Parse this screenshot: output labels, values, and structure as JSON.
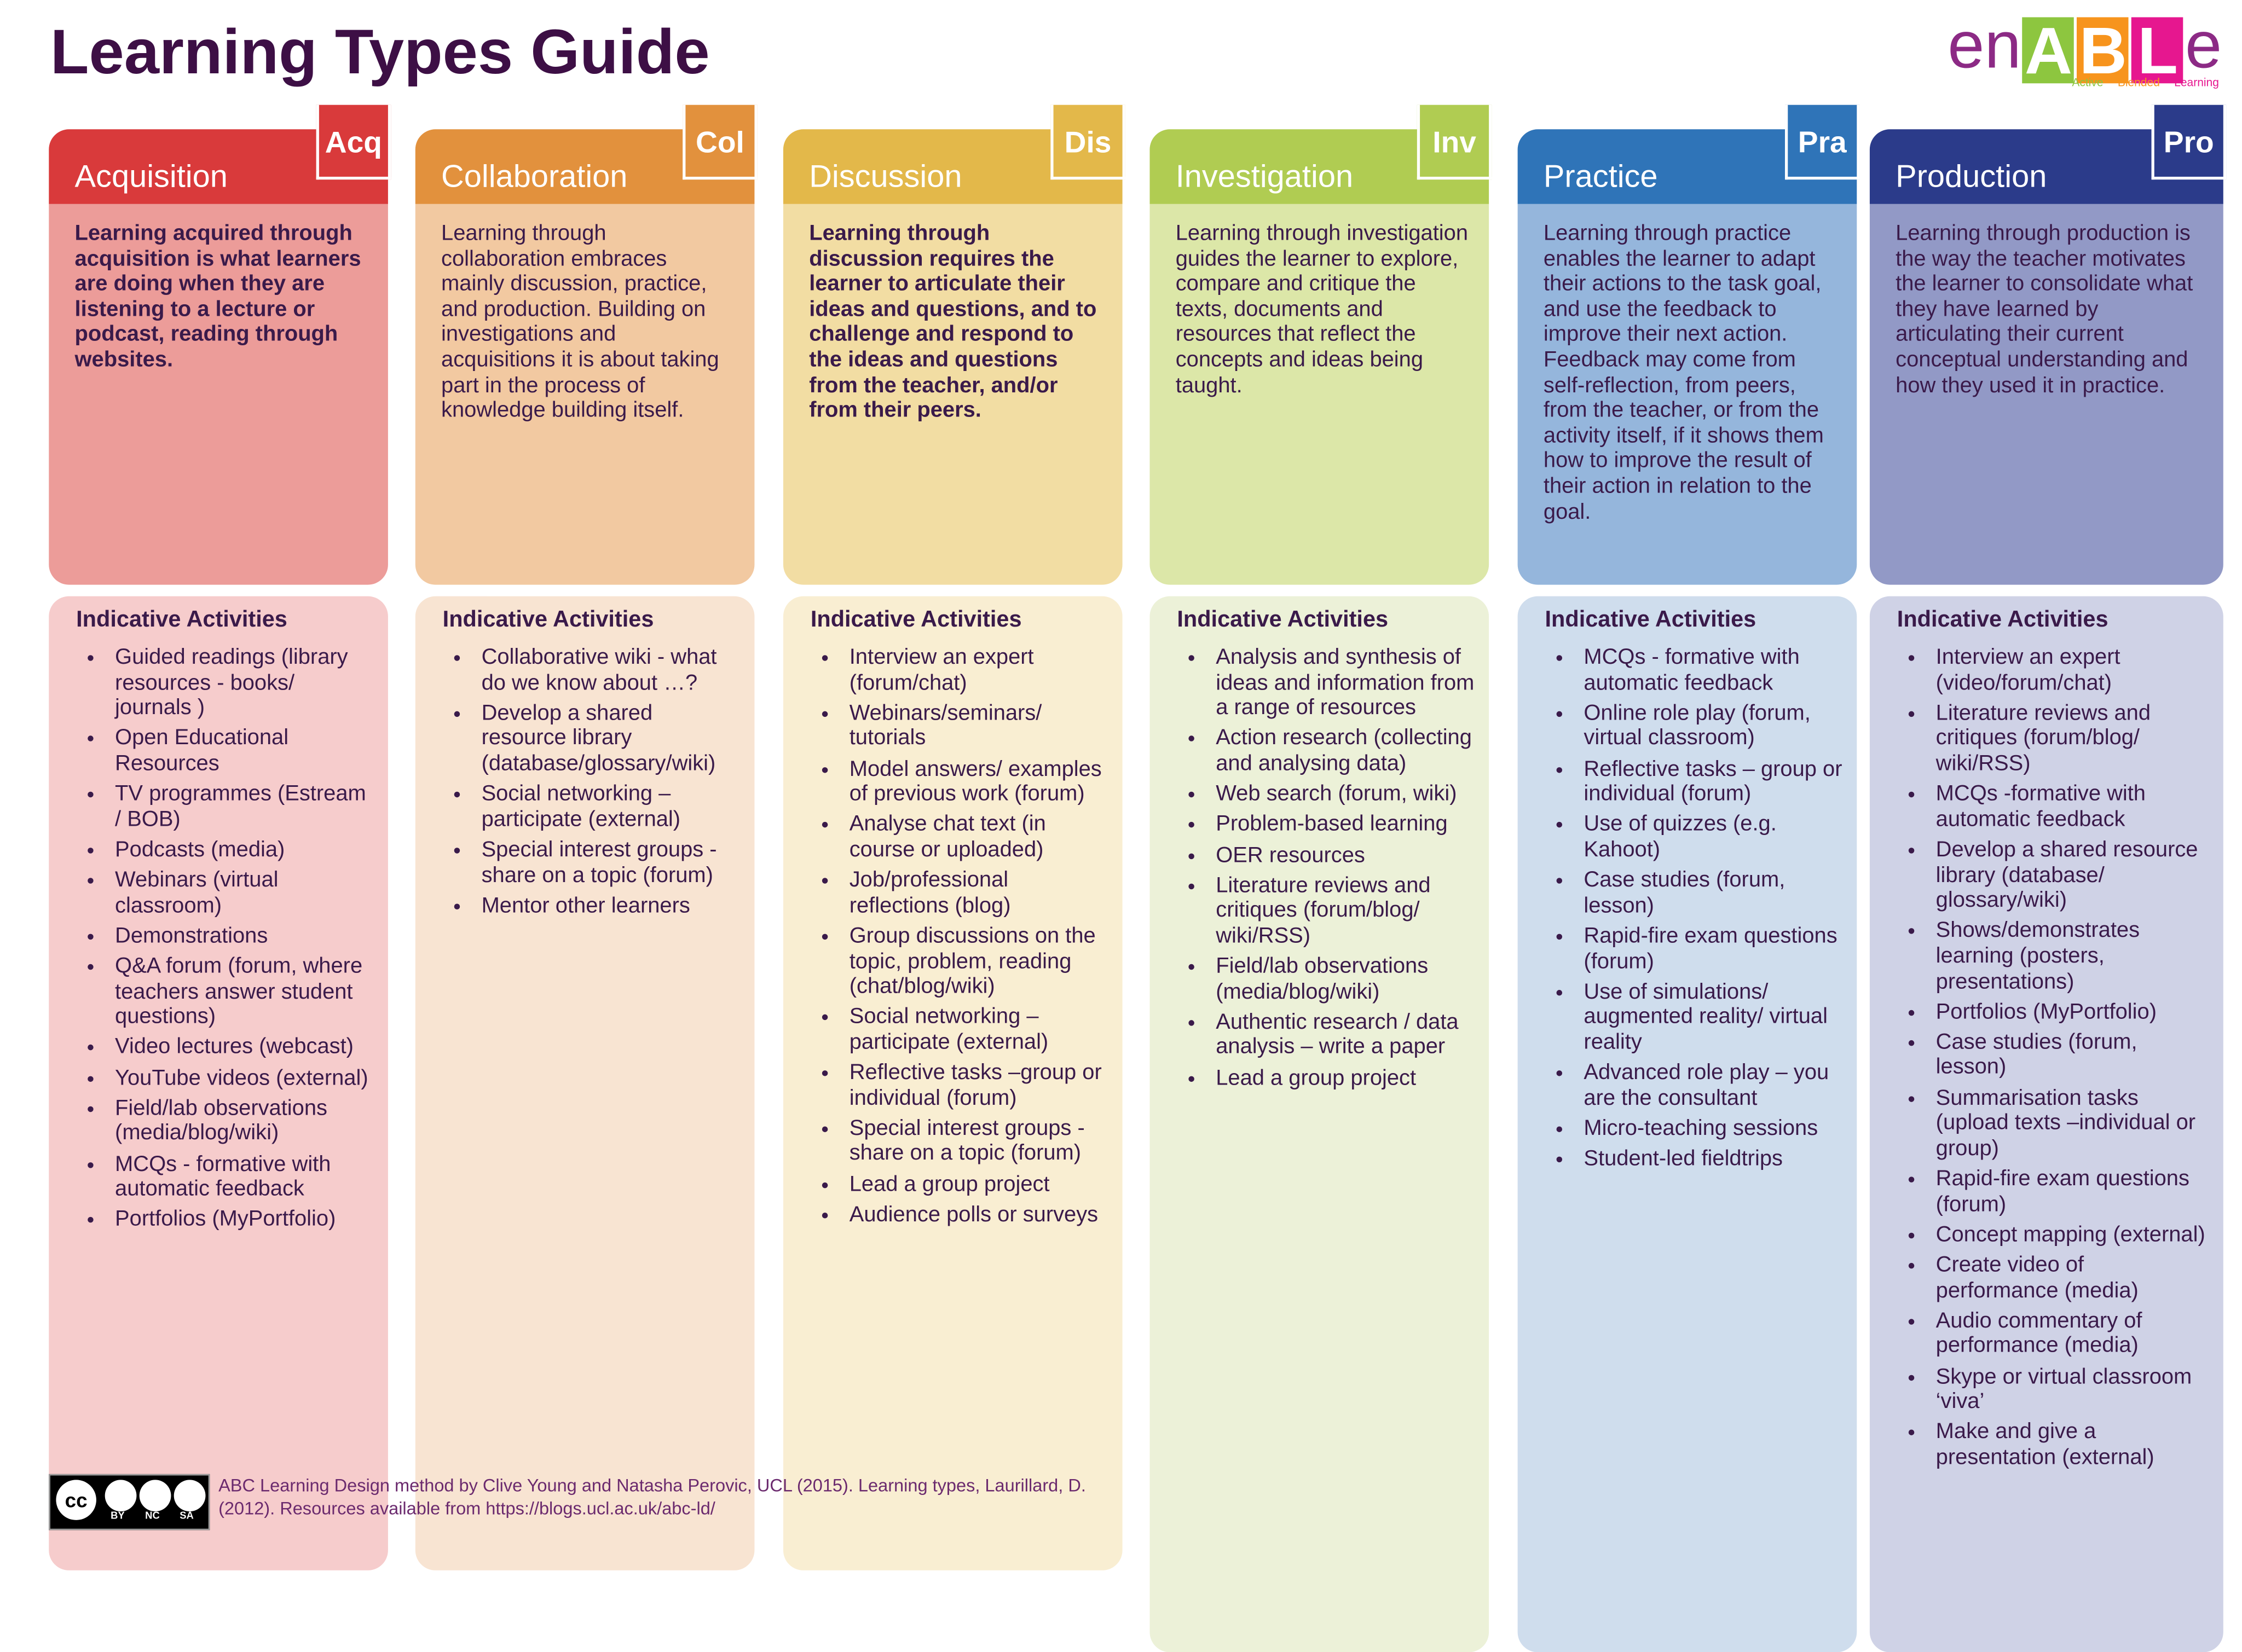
{
  "header": {
    "title": "Learning Types Guide",
    "logo": {
      "prefix": "en",
      "letters": [
        "A",
        "B",
        "L"
      ],
      "suffix": "e",
      "tagline": [
        "Active",
        "Blended",
        "Learning"
      ]
    }
  },
  "columns": [
    {
      "name": "Acquisition",
      "abbr": "Acq",
      "description": "Learning acquired through acquisition is what learners are doing when they are listening to a lecture or podcast, reading through websites.",
      "heading": "Indicative Activities",
      "activities": [
        "Guided readings (library resources - books/ journals )",
        "Open Educational Resources",
        "TV programmes (Estream / BOB)",
        "Podcasts (media)",
        "Webinars (virtual classroom)",
        "Demonstrations",
        "Q&A forum (forum, where teachers answer student questions)",
        "Video lectures (webcast)",
        "YouTube videos (external)",
        "Field/lab observations (media/blog/wiki)",
        "MCQs - formative with automatic feedback",
        "Portfolios (MyPortfolio)"
      ]
    },
    {
      "name": "Collaboration",
      "abbr": "Col",
      "description": "Learning through collaboration embraces mainly discussion, practice, and production. Building on investigations and acquisitions it is about taking part in the process of knowledge building itself.",
      "heading": "Indicative Activities",
      "activities": [
        "Collaborative wiki - what do we know about …?",
        "Develop a shared resource library (database/glossary/wiki)",
        "Social networking – participate (external)",
        "Special interest groups - share on a topic (forum)",
        "Mentor other learners"
      ]
    },
    {
      "name": "Discussion",
      "abbr": "Dis",
      "description": "Learning through discussion requires the learner to articulate their ideas and questions, and to challenge and respond to the ideas and questions from the teacher, and/or from their peers.",
      "heading": "Indicative Activities",
      "activities": [
        "Interview an expert (forum/chat)",
        "Webinars/seminars/ tutorials",
        "Model answers/ examples of previous work (forum)",
        "Analyse chat text (in course or uploaded)",
        "Job/professional reflections (blog)",
        "Group discussions on the topic, problem, reading (chat/blog/wiki)",
        "Social networking – participate (external)",
        "Reflective tasks –group or individual (forum)",
        "Special interest groups - share on a topic (forum)",
        "Lead a group project",
        "Audience polls or surveys"
      ]
    },
    {
      "name": "Investigation",
      "abbr": "Inv",
      "description": "Learning through investigation guides the learner to explore, compare and critique the texts, documents and resources that reflect the concepts and ideas being taught.",
      "heading": "Indicative Activities",
      "activities": [
        "Analysis and synthesis of ideas and information from a range of resources",
        "Action research (collecting and analysing data)",
        "Web search (forum, wiki)",
        "Problem-based learning",
        "OER resources",
        "Literature reviews and critiques (forum/blog/ wiki/RSS)",
        "Field/lab observations (media/blog/wiki)",
        "Authentic research / data analysis – write a paper",
        "Lead a group project"
      ]
    },
    {
      "name": "Practice",
      "abbr": "Pra",
      "description": "Learning through practice enables the learner to adapt their actions to the task goal, and use the feedback to improve their next action. Feedback may come from self-reflection, from peers, from the teacher, or from the activity itself, if it shows them how to improve the result of their action in relation to the goal.",
      "heading": "Indicative Activities",
      "activities": [
        "MCQs - formative with automatic feedback",
        "Online role play (forum, virtual classroom)",
        "Reflective tasks – group or individual (forum)",
        "Use of quizzes (e.g. Kahoot)",
        "Case studies (forum, lesson)",
        "Rapid-fire exam questions (forum)",
        "Use of simulations/ augmented reality/ virtual reality",
        "Advanced role play – you are the consultant",
        "Micro-teaching sessions",
        "Student-led fieldtrips"
      ]
    },
    {
      "name": "Production",
      "abbr": "Pro",
      "description": "Learning through production is the way the teacher motivates the learner to consolidate what they have learned by articulating their current conceptual understanding and how they used it in practice.",
      "heading": "Indicative Activities",
      "activities": [
        "Interview an expert (video/forum/chat)",
        "Literature reviews and critiques (forum/blog/ wiki/RSS)",
        "MCQs -formative with automatic feedback",
        "Develop a shared resource library (database/ glossary/wiki)",
        "Shows/demonstrates learning (posters, presentations)",
        "Portfolios (MyPortfolio)",
        "Case studies (forum, lesson)",
        "Summarisation tasks (upload texts –individual or group)",
        "Rapid-fire exam questions (forum)",
        "Concept mapping (external)",
        "Create video of performance (media)",
        "Audio commentary of performance (media)",
        "Skype or virtual classroom ‘viva’",
        "Make and give a presentation (external)"
      ]
    }
  ],
  "footer": {
    "license": {
      "symbol": "cc",
      "terms": [
        "BY",
        "NC",
        "SA"
      ]
    },
    "credit": "ABC Learning Design method by Clive Young and Natasha Perovic, UCL (2015). Learning types, Laurillard, D. (2012).  Resources available from https://blogs.ucl.ac.uk/abc-ld/"
  }
}
